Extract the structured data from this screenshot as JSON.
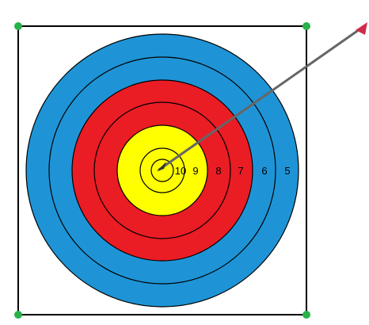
{
  "target": {
    "ring_labels": [
      "10",
      "9",
      "8",
      "7",
      "6",
      "5"
    ],
    "colors": {
      "board_border": "#000000",
      "corner_handle": "#27b24a",
      "blue": "#1e94d6",
      "red": "#ea1c24",
      "yellow": "#ffff00",
      "ring_line": "#000000",
      "arrow_shaft": "#666666",
      "arrow_fletching": "#d02b4a"
    }
  }
}
